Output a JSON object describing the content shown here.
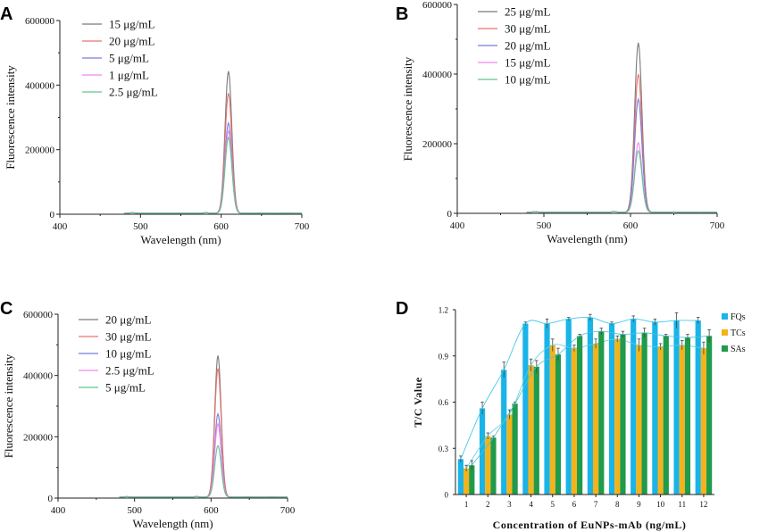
{
  "colors": {
    "gray": "#7a7a7a",
    "red": "#e8736e",
    "blue": "#7b7bdd",
    "pink": "#ee88ee",
    "green": "#62c48f",
    "fq": "#19b4e8",
    "tc": "#f2b31d",
    "sa": "#1f9b4b"
  },
  "chart_data": [
    {
      "type": "line",
      "panel": "A",
      "xlabel": "Wavelength (nm)",
      "ylabel": "Fluorescence intensity",
      "xlim": [
        400,
        700
      ],
      "ylim": [
        0,
        600000
      ],
      "x_ticks": [
        "400",
        "500",
        "600",
        "700"
      ],
      "y_ticks": [
        "0",
        "200000",
        "400000",
        "600000"
      ],
      "series": [
        {
          "name": "15 μg/mL",
          "peak": 440000,
          "color": "gray"
        },
        {
          "name": "20 μg/mL",
          "peak": 372000,
          "color": "red"
        },
        {
          "name": "5 μg/mL",
          "peak": 280000,
          "color": "blue"
        },
        {
          "name": "1 μg/mL",
          "peak": 255000,
          "color": "pink"
        },
        {
          "name": "2.5 μg/mL",
          "peak": 235000,
          "color": "green"
        }
      ]
    },
    {
      "type": "line",
      "panel": "B",
      "xlabel": "Wavelength (nm)",
      "ylabel": "Fluorescence intensity",
      "xlim": [
        400,
        700
      ],
      "ylim": [
        0,
        600000
      ],
      "x_ticks": [
        "400",
        "500",
        "600",
        "700"
      ],
      "y_ticks": [
        "0",
        "200000",
        "400000",
        "600000"
      ],
      "series": [
        {
          "name": "25 μg/mL",
          "peak": 487000,
          "color": "gray"
        },
        {
          "name": "30 μg/mL",
          "peak": 397000,
          "color": "red"
        },
        {
          "name": "20 μg/mL",
          "peak": 325000,
          "color": "blue"
        },
        {
          "name": "15 μg/mL",
          "peak": 200000,
          "color": "pink"
        },
        {
          "name": "10 μg/mL",
          "peak": 177000,
          "color": "green"
        }
      ]
    },
    {
      "type": "line",
      "panel": "C",
      "xlabel": "Wavelength (nm)",
      "ylabel": "Fluorescence intensity",
      "xlim": [
        400,
        700
      ],
      "ylim": [
        0,
        600000
      ],
      "x_ticks": [
        "400",
        "500",
        "600",
        "700"
      ],
      "y_ticks": [
        "0",
        "200000",
        "400000",
        "600000"
      ],
      "series": [
        {
          "name": "20 μg/mL",
          "peak": 462000,
          "color": "gray"
        },
        {
          "name": "30 μg/mL",
          "peak": 420000,
          "color": "red"
        },
        {
          "name": "10 μg/mL",
          "peak": 272000,
          "color": "blue"
        },
        {
          "name": "2.5 μg/mL",
          "peak": 240000,
          "color": "pink"
        },
        {
          "name": "5 μg/mL",
          "peak": 168000,
          "color": "green"
        }
      ]
    },
    {
      "type": "bar",
      "panel": "D",
      "xlabel": "Concentration of EuNPs-mAb (ng/mL)",
      "ylabel": "T/C Value",
      "ylim": [
        0,
        1.2
      ],
      "y_ticks": [
        "0",
        "0.3",
        "0.6",
        "0.9",
        "1.2"
      ],
      "categories": [
        "1",
        "2",
        "3",
        "4",
        "5",
        "6",
        "7",
        "8",
        "9",
        "10",
        "11",
        "12"
      ],
      "series": [
        {
          "name": "FQs",
          "color": "fq",
          "values": [
            0.23,
            0.56,
            0.81,
            1.11,
            1.11,
            1.14,
            1.15,
            1.11,
            1.14,
            1.12,
            1.13,
            1.13
          ],
          "errors": [
            0.02,
            0.04,
            0.05,
            0.01,
            0.03,
            0.01,
            0.02,
            0.01,
            0.02,
            0.02,
            0.05,
            0.02
          ]
        },
        {
          "name": "TCs",
          "color": "tc",
          "values": [
            0.17,
            0.38,
            0.52,
            0.84,
            0.97,
            0.95,
            0.98,
            1.01,
            0.97,
            0.96,
            0.97,
            0.95
          ],
          "errors": [
            0.02,
            0.02,
            0.03,
            0.04,
            0.04,
            0.02,
            0.03,
            0.02,
            0.04,
            0.02,
            0.03,
            0.04
          ]
        },
        {
          "name": "SAs",
          "color": "sa",
          "values": [
            0.19,
            0.37,
            0.59,
            0.83,
            0.91,
            1.03,
            1.06,
            1.04,
            1.05,
            1.03,
            1.02,
            1.03
          ],
          "errors": [
            0.03,
            0.01,
            0.01,
            0.04,
            0.04,
            0.01,
            0.02,
            0.02,
            0.03,
            0.01,
            0.02,
            0.04
          ]
        }
      ]
    }
  ]
}
